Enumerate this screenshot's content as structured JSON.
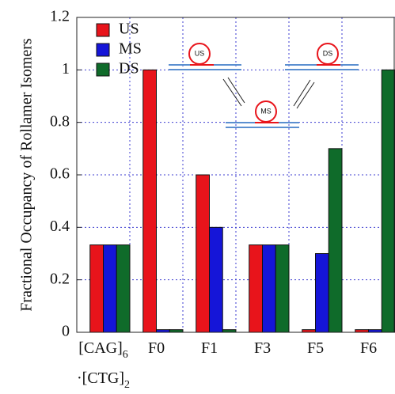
{
  "chart_data": {
    "type": "bar",
    "y_label": "Fractional Occupancy of Rollamer Isomers",
    "categories": [
      "[CAG]6·[CTG]2",
      "F0",
      "F1",
      "F3",
      "F5",
      "F6"
    ],
    "series": [
      {
        "name": "US",
        "color": "#e8141b",
        "values": [
          0.333,
          1.0,
          0.6,
          0.333,
          0.01,
          0.01
        ]
      },
      {
        "name": "MS",
        "color": "#1515d8",
        "values": [
          0.333,
          0.01,
          0.4,
          0.333,
          0.3,
          0.01
        ]
      },
      {
        "name": "DS",
        "color": "#0f6b2a",
        "values": [
          0.333,
          0.01,
          0.01,
          0.333,
          0.7,
          1.0
        ]
      }
    ],
    "ylim": [
      0,
      1.2
    ],
    "yticks": [
      0,
      0.2,
      0.4,
      0.6,
      0.8,
      1,
      1.2
    ],
    "grid": true
  }
}
